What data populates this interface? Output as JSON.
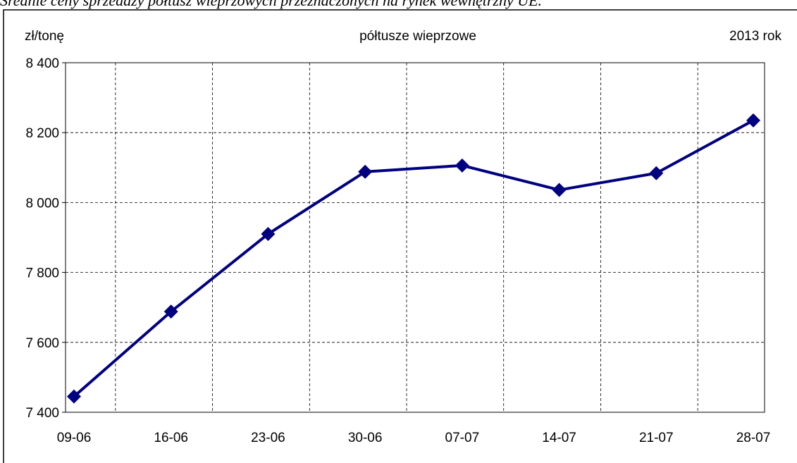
{
  "caption": "Średnie ceny sprzedaży półtusz wieprzowych przeznaczonych na rynek wewnętrzny UE.",
  "chart_data": {
    "type": "line",
    "title": "półtusze wieprzowe",
    "y_label": "zł/tonę",
    "annotation": "2013 rok",
    "categories": [
      "09-06",
      "16-06",
      "23-06",
      "30-06",
      "07-07",
      "14-07",
      "21-07",
      "28-07"
    ],
    "series": [
      {
        "name": "półtusze wieprzowe",
        "color": "#000080",
        "values": [
          7445,
          7688,
          7910,
          8088,
          8106,
          8036,
          8084,
          8235
        ]
      }
    ],
    "ylim": [
      7400,
      8400
    ],
    "yticks": [
      {
        "value": 7400,
        "label": "7 400"
      },
      {
        "value": 7600,
        "label": "7 600"
      },
      {
        "value": 7800,
        "label": "7 800"
      },
      {
        "value": 8000,
        "label": "8 000"
      },
      {
        "value": 8200,
        "label": "8 200"
      },
      {
        "value": 8400,
        "label": "8 400"
      }
    ],
    "grid": true
  }
}
